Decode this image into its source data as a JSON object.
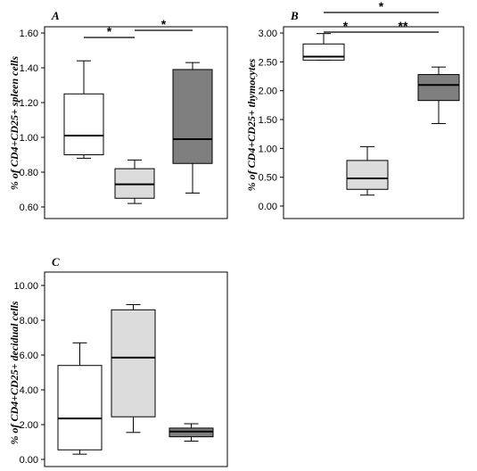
{
  "chart_data": [
    {
      "type": "box",
      "panel_label": "A",
      "ylabel": "% of CD4+CD25+ spleen cells",
      "ylim": [
        0.6,
        1.6
      ],
      "yticks": [
        "0.60",
        "0.80",
        "1.00",
        "1.20",
        "1.40",
        "1.60"
      ],
      "boxes": [
        {
          "min": 0.88,
          "q1": 0.9,
          "median": 1.01,
          "q3": 1.25,
          "max": 1.44,
          "fill": "#ffffff"
        },
        {
          "min": 0.62,
          "q1": 0.65,
          "median": 0.73,
          "q3": 0.82,
          "max": 0.87,
          "fill": "#dcdcdc"
        },
        {
          "min": 0.68,
          "q1": 0.85,
          "median": 0.99,
          "q3": 1.39,
          "max": 1.43,
          "fill": "#7f7f7f"
        }
      ],
      "significance": [
        {
          "from": 1,
          "to": 2,
          "label": "*"
        },
        {
          "from": 2,
          "to": 3,
          "label": "*"
        }
      ]
    },
    {
      "type": "box",
      "panel_label": "B",
      "ylabel": "% of CD4+CD25+ thymocytes",
      "ylim": [
        0.0,
        3.0
      ],
      "yticks": [
        "0.00",
        "0.50",
        "1.00",
        "1.50",
        "2.00",
        "2.50",
        "3.00"
      ],
      "boxes": [
        {
          "min": 2.53,
          "q1": 2.53,
          "median": 2.59,
          "q3": 2.81,
          "max": 2.99,
          "fill": "#ffffff"
        },
        {
          "min": 0.19,
          "q1": 0.29,
          "median": 0.48,
          "q3": 0.79,
          "max": 1.03,
          "fill": "#dcdcdc"
        },
        {
          "min": 1.43,
          "q1": 1.83,
          "median": 2.1,
          "q3": 2.28,
          "max": 2.41,
          "fill": "#7f7f7f"
        }
      ],
      "significance": [
        {
          "from": 1,
          "to": 3,
          "label": "*"
        },
        {
          "from": 1,
          "to": 2,
          "label": "*"
        },
        {
          "from": 2,
          "to": 3,
          "label": "**"
        }
      ]
    },
    {
      "type": "box",
      "panel_label": "C",
      "ylabel": "% of CD4+CD25+ decidual cells",
      "ylim": [
        0.0,
        10.0
      ],
      "yticks": [
        "0.00",
        "2.00",
        "4.00",
        "6.00",
        "8.00",
        "10.00"
      ],
      "boxes": [
        {
          "min": 0.3,
          "q1": 0.55,
          "median": 2.35,
          "q3": 5.4,
          "max": 6.7,
          "fill": "#ffffff"
        },
        {
          "min": 1.55,
          "q1": 2.45,
          "median": 5.85,
          "q3": 8.6,
          "max": 8.9,
          "fill": "#dcdcdc"
        },
        {
          "min": 1.05,
          "q1": 1.3,
          "median": 1.6,
          "q3": 1.8,
          "max": 2.05,
          "fill": "#7f7f7f"
        }
      ],
      "significance": []
    }
  ]
}
